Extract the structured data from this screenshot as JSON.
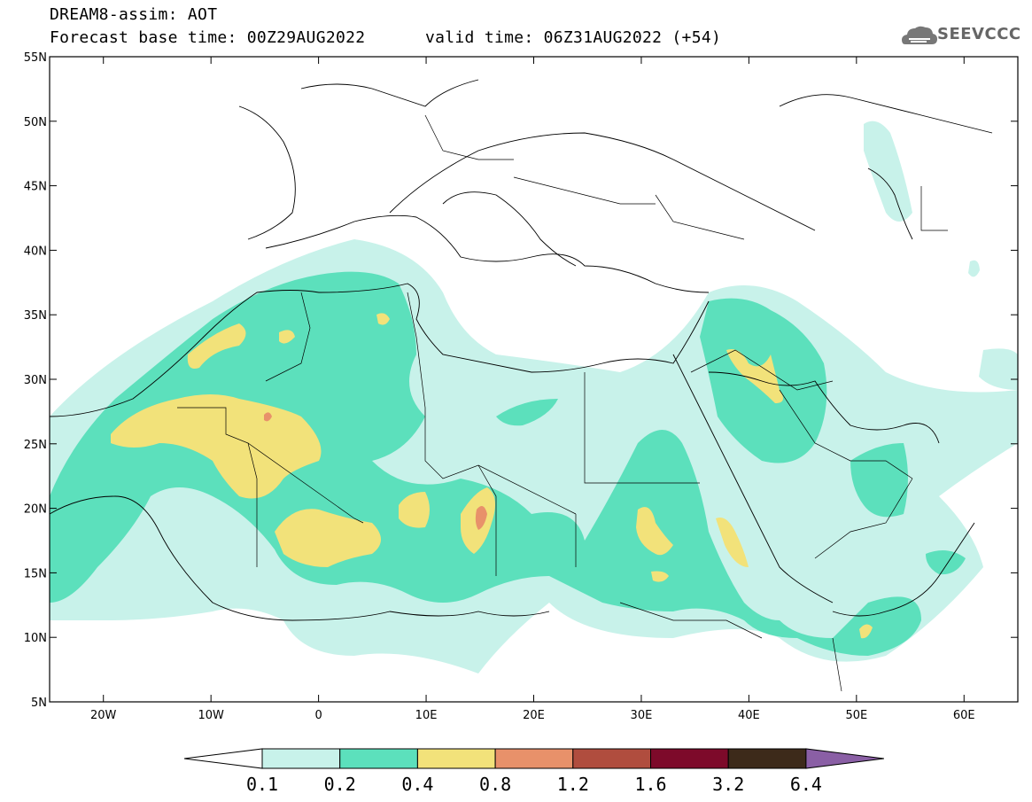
{
  "header": {
    "title": "DREAM8-assim: AOT",
    "base_time": "Forecast base time: 00Z29AUG2022",
    "valid_time": "valid time: 06Z31AUG2022 (+54)"
  },
  "logo": {
    "text": "SEEVCCC",
    "icon": "cloud-logo-icon"
  },
  "map": {
    "lon_ticks": [
      {
        "v": -20,
        "label": "20W"
      },
      {
        "v": -10,
        "label": "10W"
      },
      {
        "v": 0,
        "label": "0"
      },
      {
        "v": 10,
        "label": "10E"
      },
      {
        "v": 20,
        "label": "20E"
      },
      {
        "v": 30,
        "label": "30E"
      },
      {
        "v": 40,
        "label": "40E"
      },
      {
        "v": 50,
        "label": "50E"
      },
      {
        "v": 60,
        "label": "60E"
      }
    ],
    "lat_ticks": [
      {
        "v": 5,
        "label": "5N"
      },
      {
        "v": 10,
        "label": "10N"
      },
      {
        "v": 15,
        "label": "15N"
      },
      {
        "v": 20,
        "label": "20N"
      },
      {
        "v": 25,
        "label": "25N"
      },
      {
        "v": 30,
        "label": "30N"
      },
      {
        "v": 35,
        "label": "35N"
      },
      {
        "v": 40,
        "label": "40N"
      },
      {
        "v": 45,
        "label": "45N"
      },
      {
        "v": 50,
        "label": "50N"
      },
      {
        "v": 55,
        "label": "55N"
      }
    ],
    "extent": {
      "lon": [
        -25,
        65
      ],
      "lat": [
        5,
        55
      ]
    }
  },
  "colorbar": {
    "labels": [
      "0.1",
      "0.2",
      "0.4",
      "0.8",
      "1.2",
      "1.6",
      "3.2",
      "6.4"
    ],
    "colors": [
      "#c8f2ea",
      "#5ce0bc",
      "#f2e27a",
      "#e8916a",
      "#b04d3e",
      "#7d0a2a",
      "#3d2a1a"
    ],
    "under_color": "#ffffff",
    "over_color": "#8a5fa5"
  },
  "colors": {
    "level1": "#c8f2ea",
    "level2": "#5ce0bc",
    "level3": "#f2e27a",
    "level4": "#e8916a",
    "border": "#000000",
    "grid": "#000000"
  }
}
